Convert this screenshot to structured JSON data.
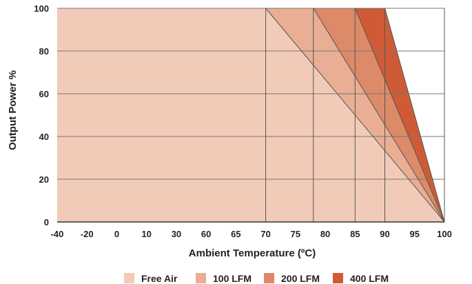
{
  "chart_data": {
    "type": "area",
    "xlabel": "Ambient Temperature (ºC)",
    "ylabel": "Output Power %",
    "x_ticks": [
      "-40",
      "-20",
      "0",
      "10",
      "30",
      "60",
      "65",
      "70",
      "75",
      "80",
      "85",
      "90",
      "95",
      "100"
    ],
    "y_ticks": [
      "0",
      "20",
      "40",
      "60",
      "80",
      "100"
    ],
    "ylim": [
      0,
      100
    ],
    "grid": true,
    "legend_position": "bottom",
    "series": [
      {
        "name": "Free Air",
        "color": "#f2cbb8",
        "points": [
          [
            "-40",
            100
          ],
          [
            "70",
            100
          ],
          [
            "100",
            0
          ]
        ]
      },
      {
        "name": "100 LFM",
        "color": "#e9ae93",
        "points": [
          [
            "-40",
            100
          ],
          [
            "78",
            100
          ],
          [
            "100",
            0
          ]
        ]
      },
      {
        "name": "200 LFM",
        "color": "#dd8a68",
        "points": [
          [
            "-40",
            100
          ],
          [
            "85",
            100
          ],
          [
            "100",
            0
          ]
        ]
      },
      {
        "name": "400 LFM",
        "color": "#cf5b36",
        "points": [
          [
            "-40",
            100
          ],
          [
            "90",
            100
          ],
          [
            "100",
            0
          ]
        ]
      }
    ]
  }
}
